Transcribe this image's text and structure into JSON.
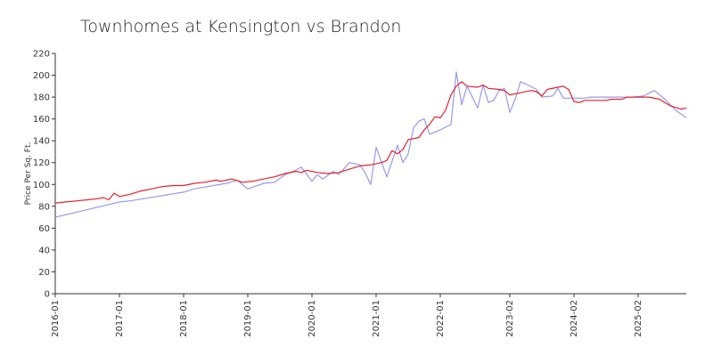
{
  "chart_data": {
    "type": "line",
    "title": "Townhomes at Kensington vs Brandon",
    "xlabel": "",
    "ylabel": "Price Per Sq. Ft.",
    "ylim": [
      0,
      220
    ],
    "yticks": [
      0,
      20,
      40,
      60,
      80,
      100,
      120,
      140,
      160,
      180,
      200,
      220
    ],
    "x_range": [
      "2016-01",
      "2025-11"
    ],
    "xticks": [
      "2016-01",
      "2017-01",
      "2018-01",
      "2019-01",
      "2020-01",
      "2021-01",
      "2022-01",
      "2023-02",
      "2024-02",
      "2025-02"
    ],
    "grid": false,
    "legend": "none",
    "series": [
      {
        "color": "#e8202a",
        "points": [
          [
            "2016-01",
            83
          ],
          [
            "2016-03",
            84
          ],
          [
            "2016-05",
            85
          ],
          [
            "2016-07",
            86
          ],
          [
            "2016-09",
            87
          ],
          [
            "2016-10",
            88
          ],
          [
            "2016-11",
            86
          ],
          [
            "2016-12",
            92
          ],
          [
            "2017-01",
            89
          ],
          [
            "2017-03",
            91
          ],
          [
            "2017-05",
            94
          ],
          [
            "2017-07",
            96
          ],
          [
            "2017-09",
            98
          ],
          [
            "2017-11",
            99
          ],
          [
            "2018-01",
            99
          ],
          [
            "2018-03",
            101
          ],
          [
            "2018-05",
            102
          ],
          [
            "2018-07",
            104
          ],
          [
            "2018-08",
            103
          ],
          [
            "2018-10",
            105
          ],
          [
            "2018-12",
            102
          ],
          [
            "2019-02",
            103
          ],
          [
            "2019-04",
            105
          ],
          [
            "2019-06",
            107
          ],
          [
            "2019-08",
            110
          ],
          [
            "2019-10",
            112
          ],
          [
            "2019-11",
            111
          ],
          [
            "2019-12",
            113
          ],
          [
            "2020-02",
            111
          ],
          [
            "2020-04",
            110
          ],
          [
            "2020-06",
            111
          ],
          [
            "2020-08",
            114
          ],
          [
            "2020-10",
            117
          ],
          [
            "2020-12",
            118
          ],
          [
            "2021-02",
            120
          ],
          [
            "2021-03",
            122
          ],
          [
            "2021-04",
            131
          ],
          [
            "2021-05",
            128
          ],
          [
            "2021-06",
            132
          ],
          [
            "2021-07",
            141
          ],
          [
            "2021-08",
            142
          ],
          [
            "2021-09",
            143
          ],
          [
            "2021-10",
            150
          ],
          [
            "2021-11",
            155
          ],
          [
            "2021-12",
            162
          ],
          [
            "2022-01",
            161
          ],
          [
            "2022-02",
            168
          ],
          [
            "2022-03",
            182
          ],
          [
            "2022-04",
            190
          ],
          [
            "2022-05",
            194
          ],
          [
            "2022-06",
            190
          ],
          [
            "2022-08",
            189
          ],
          [
            "2022-09",
            191
          ],
          [
            "2022-10",
            188
          ],
          [
            "2022-12",
            187
          ],
          [
            "2023-01",
            186
          ],
          [
            "2023-02",
            182
          ],
          [
            "2023-04",
            184
          ],
          [
            "2023-06",
            186
          ],
          [
            "2023-07",
            185
          ],
          [
            "2023-08",
            181
          ],
          [
            "2023-09",
            187
          ],
          [
            "2023-11",
            189
          ],
          [
            "2023-12",
            190
          ],
          [
            "2024-01",
            187
          ],
          [
            "2024-02",
            176
          ],
          [
            "2024-03",
            175
          ],
          [
            "2024-04",
            177
          ],
          [
            "2024-06",
            177
          ],
          [
            "2024-08",
            177
          ],
          [
            "2024-09",
            178
          ],
          [
            "2024-11",
            178
          ],
          [
            "2024-12",
            180
          ],
          [
            "2025-02",
            180
          ],
          [
            "2025-04",
            180
          ],
          [
            "2025-06",
            178
          ],
          [
            "2025-07",
            175
          ],
          [
            "2025-08",
            172
          ],
          [
            "2025-10",
            169
          ],
          [
            "2025-11",
            170
          ]
        ]
      },
      {
        "color": "#9999ee",
        "points": [
          [
            "2016-01",
            70
          ],
          [
            "2017-01",
            84
          ],
          [
            "2017-03",
            85
          ],
          [
            "2018-01",
            93
          ],
          [
            "2018-03",
            96
          ],
          [
            "2018-09",
            101
          ],
          [
            "2018-11",
            104
          ],
          [
            "2019-01",
            96
          ],
          [
            "2019-04",
            101
          ],
          [
            "2019-06",
            102
          ],
          [
            "2019-08",
            109
          ],
          [
            "2019-10",
            113
          ],
          [
            "2019-11",
            116
          ],
          [
            "2020-01",
            103
          ],
          [
            "2020-02",
            109
          ],
          [
            "2020-03",
            105
          ],
          [
            "2020-05",
            112
          ],
          [
            "2020-06",
            109
          ],
          [
            "2020-08",
            120
          ],
          [
            "2020-10",
            118
          ],
          [
            "2020-11",
            110
          ],
          [
            "2020-12",
            100
          ],
          [
            "2021-01",
            134
          ],
          [
            "2021-03",
            107
          ],
          [
            "2021-05",
            136
          ],
          [
            "2021-06",
            120
          ],
          [
            "2021-07",
            128
          ],
          [
            "2021-08",
            152
          ],
          [
            "2021-09",
            158
          ],
          [
            "2021-10",
            160
          ],
          [
            "2021-11",
            146
          ],
          [
            "2022-01",
            150
          ],
          [
            "2022-03",
            155
          ],
          [
            "2022-04",
            203
          ],
          [
            "2022-05",
            173
          ],
          [
            "2022-06",
            190
          ],
          [
            "2022-08",
            170
          ],
          [
            "2022-09",
            191
          ],
          [
            "2022-10",
            175
          ],
          [
            "2022-11",
            177
          ],
          [
            "2022-12",
            186
          ],
          [
            "2023-01",
            188
          ],
          [
            "2023-02",
            166
          ],
          [
            "2023-03",
            178
          ],
          [
            "2023-04",
            194
          ],
          [
            "2023-05",
            192
          ],
          [
            "2023-07",
            187
          ],
          [
            "2023-08",
            180
          ],
          [
            "2023-10",
            181
          ],
          [
            "2023-11",
            188
          ],
          [
            "2023-12",
            179
          ],
          [
            "2024-02",
            179
          ],
          [
            "2024-04",
            179
          ],
          [
            "2024-05",
            180
          ],
          [
            "2024-08",
            180
          ],
          [
            "2024-11",
            180
          ],
          [
            "2025-01",
            180
          ],
          [
            "2025-03",
            181
          ],
          [
            "2025-05",
            186
          ],
          [
            "2025-07",
            178
          ],
          [
            "2025-09",
            168
          ],
          [
            "2025-11",
            161
          ]
        ]
      }
    ]
  }
}
